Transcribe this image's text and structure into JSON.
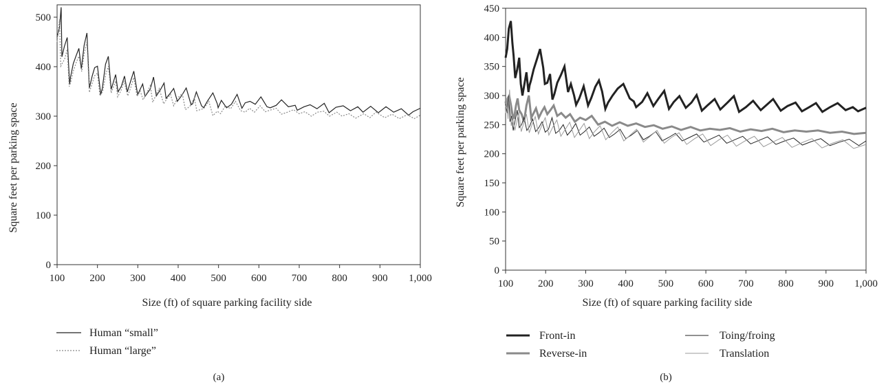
{
  "chart_data": [
    {
      "type": "line",
      "panel_label": "(a)",
      "xlabel": "Size (ft) of square parking facility side",
      "ylabel": "Square feet per parking space",
      "xlim": [
        100,
        1000
      ],
      "ylim": [
        0,
        525
      ],
      "xticks": [
        100,
        200,
        300,
        400,
        500,
        600,
        700,
        800,
        900,
        1000
      ],
      "xtick_labels": [
        "100",
        "200",
        "300",
        "400",
        "500",
        "600",
        "700",
        "800",
        "900",
        "1,000"
      ],
      "yticks": [
        0,
        100,
        200,
        300,
        400,
        500
      ],
      "ytick_labels": [
        "0",
        "100",
        "200",
        "300",
        "400",
        "500"
      ],
      "grid": false,
      "legend_position": "bottom-left",
      "series": [
        {
          "name": "Human “small”",
          "color": "#222222",
          "style": "solid",
          "x": [
            100,
            106,
            110,
            112,
            118,
            125,
            131,
            133,
            140,
            147,
            154,
            160,
            167,
            172,
            174,
            180,
            187,
            193,
            200,
            208,
            212,
            220,
            227,
            234,
            245,
            251,
            259,
            267,
            274,
            283,
            290,
            298,
            300,
            312,
            318,
            331,
            339,
            346,
            357,
            365,
            370,
            380,
            389,
            398,
            409,
            420,
            432,
            436,
            445,
            458,
            463,
            473,
            486,
            497,
            499,
            507,
            520,
            532,
            546,
            558,
            566,
            578,
            591,
            605,
            620,
            628,
            643,
            656,
            673,
            690,
            695,
            712,
            727,
            744,
            762,
            774,
            791,
            809,
            827,
            845,
            858,
            877,
            896,
            915,
            934,
            953,
            971,
            982,
            1000
          ],
          "y": [
            460,
            479,
            520,
            420,
            441,
            459,
            364,
            378,
            406,
            422,
            437,
            395,
            443,
            461,
            468,
            357,
            381,
            398,
            401,
            344,
            356,
            405,
            421,
            354,
            384,
            349,
            360,
            381,
            349,
            373,
            391,
            351,
            344,
            365,
            340,
            355,
            379,
            341,
            355,
            367,
            336,
            346,
            356,
            330,
            342,
            357,
            323,
            325,
            349,
            321,
            317,
            331,
            347,
            325,
            317,
            332,
            317,
            324,
            344,
            316,
            327,
            330,
            324,
            339,
            319,
            317,
            322,
            333,
            319,
            322,
            312,
            319,
            323,
            315,
            326,
            307,
            318,
            321,
            311,
            319,
            308,
            320,
            307,
            319,
            308,
            315,
            302,
            309,
            316
          ]
        },
        {
          "name": "Human “large”",
          "color": "#888888",
          "style": "dotted",
          "x": [
            100,
            106,
            109,
            113,
            119,
            125,
            130,
            134,
            140,
            148,
            154,
            161,
            167,
            174,
            180,
            186,
            193,
            200,
            206,
            213,
            221,
            227,
            234,
            245,
            250,
            258,
            266,
            275,
            283,
            290,
            298,
            306,
            313,
            321,
            331,
            337,
            347,
            353,
            364,
            372,
            381,
            389,
            398,
            410,
            418,
            429,
            440,
            446,
            458,
            464,
            476,
            486,
            497,
            505,
            517,
            530,
            542,
            555,
            566,
            577,
            589,
            603,
            616,
            627,
            643,
            656,
            671,
            686,
            700,
            714,
            730,
            745,
            761,
            775,
            793,
            806,
            823,
            840,
            860,
            875,
            890,
            912,
            930,
            948,
            968,
            985,
            1000
          ],
          "y": [
            450,
            495,
            401,
            407,
            416,
            435,
            360,
            369,
            391,
            410,
            421,
            390,
            426,
            450,
            348,
            364,
            382,
            387,
            341,
            350,
            386,
            401,
            347,
            371,
            339,
            351,
            370,
            341,
            359,
            378,
            340,
            351,
            333,
            345,
            362,
            328,
            346,
            356,
            325,
            335,
            344,
            321,
            336,
            346,
            313,
            320,
            337,
            311,
            314,
            316,
            330,
            301,
            310,
            305,
            321,
            315,
            330,
            311,
            308,
            316,
            308,
            321,
            309,
            312,
            316,
            304,
            308,
            313,
            305,
            309,
            300,
            308,
            310,
            300,
            308,
            300,
            305,
            296,
            305,
            297,
            308,
            297,
            304,
            295,
            303,
            295,
            302
          ]
        }
      ]
    },
    {
      "type": "line",
      "panel_label": "(b)",
      "xlabel": "Size (ft) of square parking facility side",
      "ylabel": "Square feet per parking space",
      "xlim": [
        100,
        1000
      ],
      "ylim": [
        0,
        450
      ],
      "xticks": [
        100,
        200,
        300,
        400,
        500,
        600,
        700,
        800,
        900,
        1000
      ],
      "xtick_labels": [
        "100",
        "200",
        "300",
        "400",
        "500",
        "600",
        "700",
        "800",
        "900",
        "1,000"
      ],
      "yticks": [
        0,
        50,
        100,
        150,
        200,
        250,
        300,
        350,
        400,
        450
      ],
      "ytick_labels": [
        "0",
        "50",
        "100",
        "150",
        "200",
        "250",
        "300",
        "350",
        "400",
        "450"
      ],
      "grid": false,
      "legend_position": "bottom",
      "series": [
        {
          "name": "Front-in",
          "color": "#222222",
          "style": "thick",
          "x": [
            100,
            104,
            108,
            113,
            117,
            120,
            124,
            129,
            134,
            138,
            142,
            146,
            152,
            157,
            160,
            163,
            170,
            178,
            186,
            194,
            198,
            204,
            211,
            217,
            222,
            229,
            238,
            247,
            256,
            263,
            271,
            276,
            284,
            295,
            306,
            314,
            324,
            333,
            341,
            349,
            356,
            367,
            380,
            394,
            410,
            420,
            426,
            441,
            454,
            469,
            481,
            496,
            508,
            520,
            534,
            550,
            564,
            577,
            590,
            604,
            622,
            636,
            654,
            670,
            683,
            700,
            718,
            737,
            752,
            768,
            787,
            804,
            824,
            840,
            858,
            875,
            891,
            910,
            929,
            949,
            967,
            980,
            1000
          ],
          "y": [
            365,
            380,
            415,
            428,
            390,
            369,
            330,
            345,
            365,
            320,
            300,
            316,
            340,
            306,
            318,
            325,
            345,
            362,
            380,
            348,
            320,
            322,
            337,
            293,
            303,
            322,
            335,
            350,
            306,
            320,
            300,
            284,
            295,
            316,
            283,
            296,
            315,
            326,
            307,
            277,
            288,
            300,
            312,
            320,
            295,
            290,
            280,
            289,
            304,
            282,
            294,
            308,
            277,
            289,
            299,
            279,
            288,
            301,
            274,
            283,
            294,
            276,
            288,
            299,
            272,
            280,
            291,
            275,
            284,
            294,
            274,
            282,
            288,
            273,
            280,
            287,
            272,
            280,
            287,
            275,
            280,
            273,
            279
          ]
        },
        {
          "name": "Reverse-in",
          "color": "#8a8a8a",
          "style": "thick",
          "x": [
            100,
            102,
            105,
            109,
            113,
            117,
            121,
            126,
            130,
            134,
            140,
            146,
            152,
            158,
            164,
            170,
            176,
            183,
            190,
            197,
            204,
            212,
            220,
            229,
            239,
            250,
            261,
            273,
            286,
            300,
            315,
            331,
            348,
            366,
            385,
            405,
            426,
            448,
            470,
            492,
            515,
            538,
            562,
            586,
            610,
            635,
            660,
            686,
            712,
            739,
            766,
            794,
            822,
            851,
            880,
            910,
            940,
            970,
            1000
          ],
          "y": [
            290,
            280,
            295,
            300,
            285,
            268,
            260,
            283,
            295,
            275,
            268,
            255,
            283,
            300,
            262,
            270,
            278,
            262,
            272,
            280,
            268,
            275,
            283,
            265,
            270,
            262,
            268,
            255,
            262,
            258,
            265,
            250,
            255,
            248,
            254,
            248,
            252,
            246,
            249,
            243,
            247,
            241,
            246,
            240,
            243,
            241,
            244,
            238,
            242,
            239,
            243,
            237,
            240,
            238,
            240,
            236,
            238,
            234,
            236
          ]
        },
        {
          "name": "Toing/froing",
          "color": "#222222",
          "style": "thin",
          "x": [
            100,
            104,
            108,
            111,
            115,
            119,
            124,
            129,
            134,
            140,
            146,
            153,
            160,
            167,
            175,
            183,
            191,
            199,
            207,
            216,
            225,
            234,
            244,
            254,
            264,
            275,
            286,
            297,
            309,
            321,
            333,
            346,
            359,
            372,
            386,
            400,
            414,
            429,
            444,
            459,
            475,
            491,
            507,
            524,
            541,
            559,
            577,
            595,
            614,
            633,
            652,
            672,
            692,
            712,
            733,
            754,
            775,
            797,
            819,
            841,
            864,
            887,
            910,
            934,
            958,
            982,
            1000
          ],
          "y": [
            285,
            270,
            300,
            255,
            265,
            240,
            258,
            275,
            245,
            250,
            262,
            240,
            247,
            260,
            238,
            245,
            255,
            237,
            242,
            262,
            235,
            240,
            250,
            232,
            240,
            252,
            232,
            238,
            246,
            230,
            236,
            244,
            228,
            234,
            242,
            226,
            232,
            240,
            224,
            230,
            238,
            222,
            228,
            235,
            222,
            228,
            234,
            220,
            226,
            232,
            218,
            224,
            230,
            217,
            223,
            229,
            216,
            222,
            227,
            215,
            221,
            226,
            214,
            220,
            225,
            214,
            222
          ]
        },
        {
          "name": "Translation",
          "color": "#9a9a9a",
          "style": "thin",
          "x": [
            100,
            103,
            106,
            110,
            114,
            118,
            123,
            128,
            133,
            139,
            145,
            152,
            159,
            166,
            174,
            182,
            190,
            199,
            208,
            218,
            228,
            238,
            249,
            260,
            272,
            284,
            296,
            309,
            322,
            336,
            350,
            365,
            380,
            395,
            411,
            427,
            444,
            461,
            478,
            496,
            514,
            533,
            552,
            572,
            592,
            612,
            633,
            654,
            676,
            698,
            721,
            744,
            767,
            791,
            815,
            840,
            865,
            890,
            916,
            942,
            969,
            1000
          ],
          "y": [
            270,
            295,
            260,
            310,
            248,
            262,
            240,
            255,
            272,
            238,
            252,
            268,
            236,
            250,
            264,
            234,
            248,
            262,
            232,
            246,
            258,
            230,
            242,
            254,
            228,
            240,
            252,
            226,
            238,
            248,
            224,
            236,
            246,
            222,
            232,
            242,
            220,
            230,
            240,
            218,
            228,
            236,
            216,
            226,
            234,
            214,
            224,
            232,
            213,
            222,
            230,
            212,
            220,
            228,
            211,
            219,
            226,
            210,
            218,
            224,
            209,
            216
          ]
        }
      ]
    }
  ]
}
